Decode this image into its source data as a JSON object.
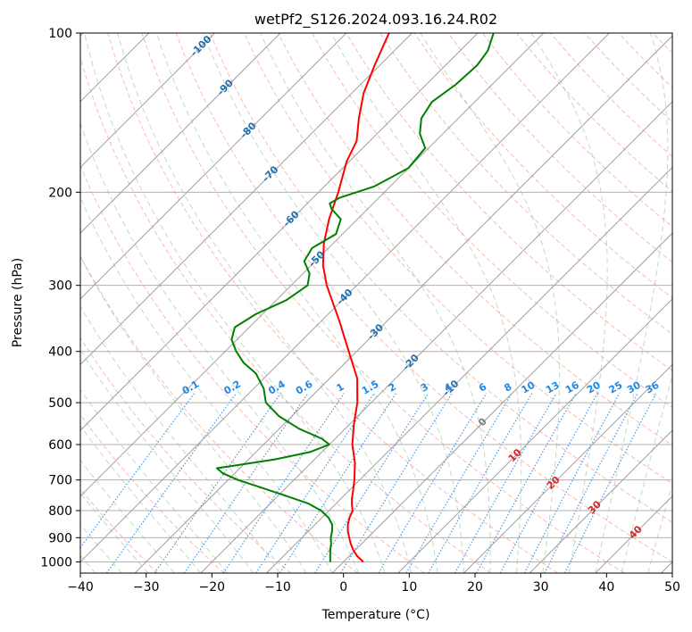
{
  "chart_data": {
    "type": "line",
    "subtype": "skew-t-log-p",
    "title": "wetPf2_S126.2024.093.16.24.R02",
    "xlabel": "Temperature (°C)",
    "ylabel": "Pressure (hPa)",
    "xlim": [
      -40,
      50
    ],
    "ylim": [
      1050,
      100
    ],
    "y_scale": "log",
    "x_ticks": [
      -40,
      -30,
      -20,
      -10,
      0,
      10,
      20,
      30,
      40,
      50
    ],
    "y_ticks": [
      100,
      200,
      300,
      400,
      500,
      600,
      700,
      800,
      900,
      1000
    ],
    "grid": true,
    "series": [
      {
        "role": "temperature",
        "color": "#ff0000",
        "points": [
          {
            "p": 1000,
            "t": 3.0
          },
          {
            "p": 975,
            "t": 1.2
          },
          {
            "p": 950,
            "t": -0.3
          },
          {
            "p": 925,
            "t": -1.6
          },
          {
            "p": 900,
            "t": -2.8
          },
          {
            "p": 875,
            "t": -4.0
          },
          {
            "p": 850,
            "t": -5.0
          },
          {
            "p": 825,
            "t": -5.8
          },
          {
            "p": 800,
            "t": -6.4
          },
          {
            "p": 780,
            "t": -7.4
          },
          {
            "p": 760,
            "t": -8.3
          },
          {
            "p": 740,
            "t": -9.1
          },
          {
            "p": 700,
            "t": -10.8
          },
          {
            "p": 650,
            "t": -13.3
          },
          {
            "p": 600,
            "t": -16.5
          },
          {
            "p": 550,
            "t": -19.3
          },
          {
            "p": 500,
            "t": -22.1
          },
          {
            "p": 450,
            "t": -25.8
          },
          {
            "p": 400,
            "t": -31.2
          },
          {
            "p": 350,
            "t": -37.3
          },
          {
            "p": 300,
            "t": -44.6
          },
          {
            "p": 275,
            "t": -48.2
          },
          {
            "p": 250,
            "t": -51.4
          },
          {
            "p": 225,
            "t": -54.3
          },
          {
            "p": 200,
            "t": -57.0
          },
          {
            "p": 175,
            "t": -60.4
          },
          {
            "p": 160,
            "t": -62.0
          },
          {
            "p": 145,
            "t": -65.1
          },
          {
            "p": 130,
            "t": -68.2
          },
          {
            "p": 115,
            "t": -70.8
          },
          {
            "p": 100,
            "t": -73.5
          }
        ]
      },
      {
        "role": "dewpoint",
        "color": "#008000",
        "points": [
          {
            "p": 1000,
            "t": -2.0
          },
          {
            "p": 975,
            "t": -2.9
          },
          {
            "p": 950,
            "t": -3.8
          },
          {
            "p": 925,
            "t": -4.6
          },
          {
            "p": 900,
            "t": -5.6
          },
          {
            "p": 875,
            "t": -6.4
          },
          {
            "p": 850,
            "t": -7.4
          },
          {
            "p": 825,
            "t": -9.0
          },
          {
            "p": 800,
            "t": -11.2
          },
          {
            "p": 775,
            "t": -14.3
          },
          {
            "p": 750,
            "t": -18.8
          },
          {
            "p": 720,
            "t": -24.5
          },
          {
            "p": 700,
            "t": -28.5
          },
          {
            "p": 680,
            "t": -31.8
          },
          {
            "p": 665,
            "t": -33.5
          },
          {
            "p": 655,
            "t": -30.5
          },
          {
            "p": 640,
            "t": -26.0
          },
          {
            "p": 620,
            "t": -21.8
          },
          {
            "p": 600,
            "t": -20.0
          },
          {
            "p": 585,
            "t": -22.0
          },
          {
            "p": 560,
            "t": -27.0
          },
          {
            "p": 530,
            "t": -32.0
          },
          {
            "p": 500,
            "t": -36.0
          },
          {
            "p": 470,
            "t": -38.5
          },
          {
            "p": 440,
            "t": -42.0
          },
          {
            "p": 420,
            "t": -45.5
          },
          {
            "p": 400,
            "t": -48.3
          },
          {
            "p": 380,
            "t": -50.8
          },
          {
            "p": 360,
            "t": -52.2
          },
          {
            "p": 340,
            "t": -51.0
          },
          {
            "p": 320,
            "t": -48.5
          },
          {
            "p": 300,
            "t": -47.5
          },
          {
            "p": 285,
            "t": -49.0
          },
          {
            "p": 270,
            "t": -51.7
          },
          {
            "p": 255,
            "t": -52.5
          },
          {
            "p": 240,
            "t": -51.0
          },
          {
            "p": 225,
            "t": -52.5
          },
          {
            "p": 215,
            "t": -55.5
          },
          {
            "p": 210,
            "t": -56.6
          },
          {
            "p": 205,
            "t": -56.0
          },
          {
            "p": 195,
            "t": -52.4
          },
          {
            "p": 180,
            "t": -50.0
          },
          {
            "p": 165,
            "t": -50.5
          },
          {
            "p": 155,
            "t": -53.5
          },
          {
            "p": 145,
            "t": -55.6
          },
          {
            "p": 135,
            "t": -56.5
          },
          {
            "p": 125,
            "t": -55.5
          },
          {
            "p": 115,
            "t": -55.2
          },
          {
            "p": 108,
            "t": -55.8
          },
          {
            "p": 100,
            "t": -57.6
          }
        ]
      }
    ],
    "isotherm_labels": [
      {
        "text": "-100",
        "t": -100,
        "p": 106
      },
      {
        "text": "-90",
        "t": -90,
        "p": 127
      },
      {
        "text": "-80",
        "t": -80,
        "p": 153
      },
      {
        "text": "-70",
        "t": -70,
        "p": 185
      },
      {
        "text": "-60",
        "t": -60,
        "p": 225
      },
      {
        "text": "-50",
        "t": -50,
        "p": 268
      },
      {
        "text": "-40",
        "t": -40,
        "p": 316
      },
      {
        "text": "-30",
        "t": -30,
        "p": 368
      },
      {
        "text": "-20",
        "t": -20,
        "p": 420
      },
      {
        "text": "-10",
        "t": -10,
        "p": 470
      }
    ],
    "mixing_ratio_labels": [
      "0.1",
      "0.2",
      "0.4",
      "0.6",
      "1",
      "1.5",
      "2",
      "3",
      "4",
      "6",
      "8",
      "10",
      "13",
      "16",
      "20",
      "25",
      "30",
      "36"
    ],
    "mixing_ratio_values": [
      0.1,
      0.2,
      0.4,
      0.6,
      1,
      1.5,
      2,
      3,
      4,
      6,
      8,
      10,
      13,
      16,
      20,
      25,
      30,
      36
    ],
    "mixing_ratio_label_p": 480,
    "lower_labels": [
      {
        "text": "0",
        "t": 0,
        "p": 545,
        "color": "#808080"
      },
      {
        "text": "10",
        "t": 10,
        "p": 630,
        "color": "#d62728"
      },
      {
        "text": "20",
        "t": 20,
        "p": 710,
        "color": "#d62728"
      },
      {
        "text": "30",
        "t": 30,
        "p": 790,
        "color": "#d62728"
      },
      {
        "text": "40",
        "t": 40,
        "p": 880,
        "color": "#d62728"
      }
    ],
    "colors": {
      "isotherm": "#a0a0a0",
      "dry_adiabat": "#fa8072",
      "moist_adiabat": "#8fbc8f",
      "mixing_ratio": "#1e88e5",
      "isotherm_label": "#1f6fb0",
      "tan_curve": "#d2b48c"
    }
  }
}
